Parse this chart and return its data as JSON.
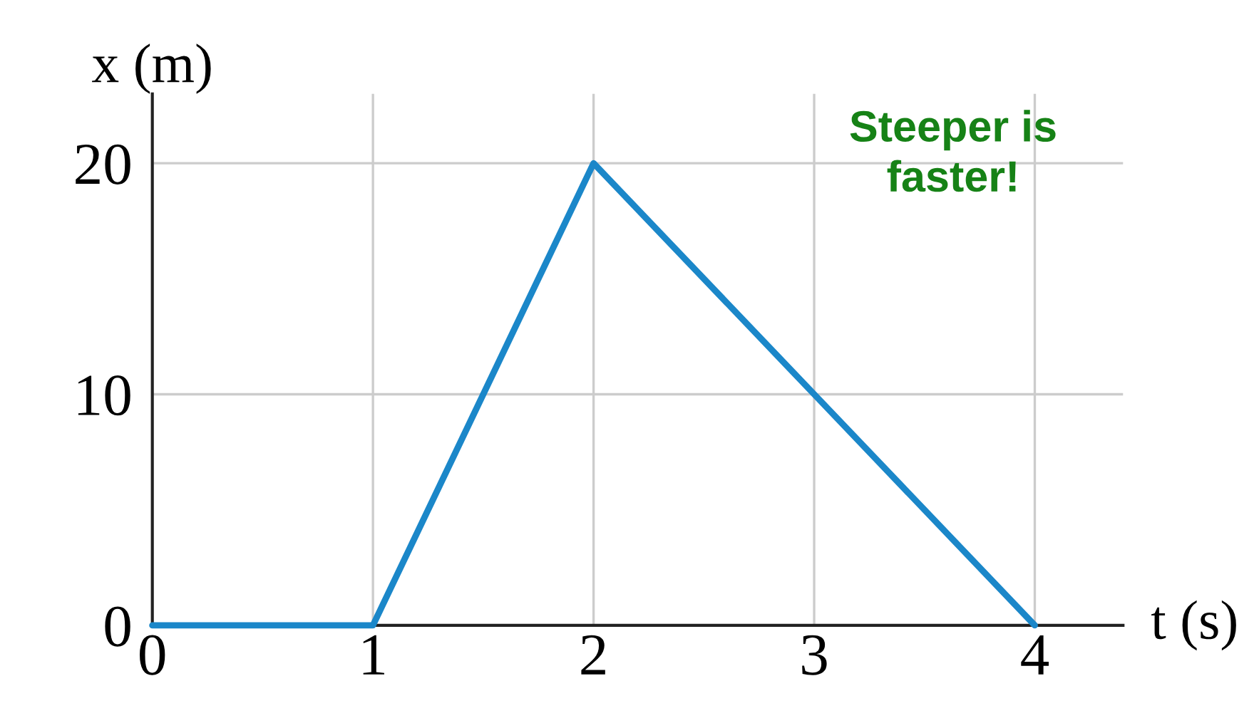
{
  "chart_data": {
    "type": "line",
    "xlabel": "t (s)",
    "ylabel": "x (m)",
    "x": [
      0,
      1,
      2,
      3,
      4
    ],
    "series": [
      {
        "color": "#1b87c9",
        "values": [
          0,
          0,
          20,
          10,
          0
        ]
      }
    ],
    "xlim": [
      0,
      4.4
    ],
    "ylim": [
      0,
      23
    ],
    "xticks": [
      0,
      1,
      2,
      3,
      4
    ],
    "yticks": [
      0,
      10,
      20
    ],
    "grid": true,
    "marker": "none",
    "line_style": "solid",
    "annotations": [
      "Steeper is\nfaster!"
    ]
  }
}
